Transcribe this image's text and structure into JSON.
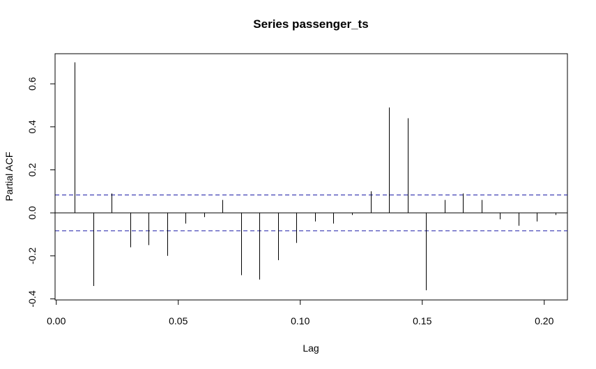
{
  "chart_data": {
    "type": "bar",
    "title": "Series  passenger_ts",
    "xlabel": "Lag",
    "ylabel": "Partial ACF",
    "xlim": [
      -0.0005,
      0.2095
    ],
    "ylim": [
      -0.405,
      0.74
    ],
    "xticks": [
      "0.00",
      "0.05",
      "0.10",
      "0.15",
      "0.20"
    ],
    "yticks": [
      "-0.4",
      "-0.2",
      "0.0",
      "0.2",
      "0.4",
      "0.6"
    ],
    "x": [
      0.00758,
      0.01515,
      0.02273,
      0.0303,
      0.03788,
      0.04545,
      0.05303,
      0.06061,
      0.06818,
      0.07576,
      0.08333,
      0.09091,
      0.09848,
      0.10606,
      0.11364,
      0.12121,
      0.12879,
      0.13636,
      0.14394,
      0.15152,
      0.15909,
      0.16667,
      0.17424,
      0.18182,
      0.18939,
      0.19697,
      0.20455
    ],
    "values": [
      0.7,
      -0.34,
      0.09,
      -0.16,
      -0.15,
      -0.2,
      -0.05,
      -0.02,
      0.06,
      -0.29,
      -0.31,
      -0.22,
      -0.14,
      -0.04,
      -0.05,
      -0.01,
      0.1,
      0.49,
      0.44,
      -0.36,
      0.06,
      0.09,
      0.06,
      -0.03,
      -0.06,
      -0.04,
      -0.01
    ],
    "ci": 0.0833,
    "grid": false,
    "legend": "none"
  }
}
